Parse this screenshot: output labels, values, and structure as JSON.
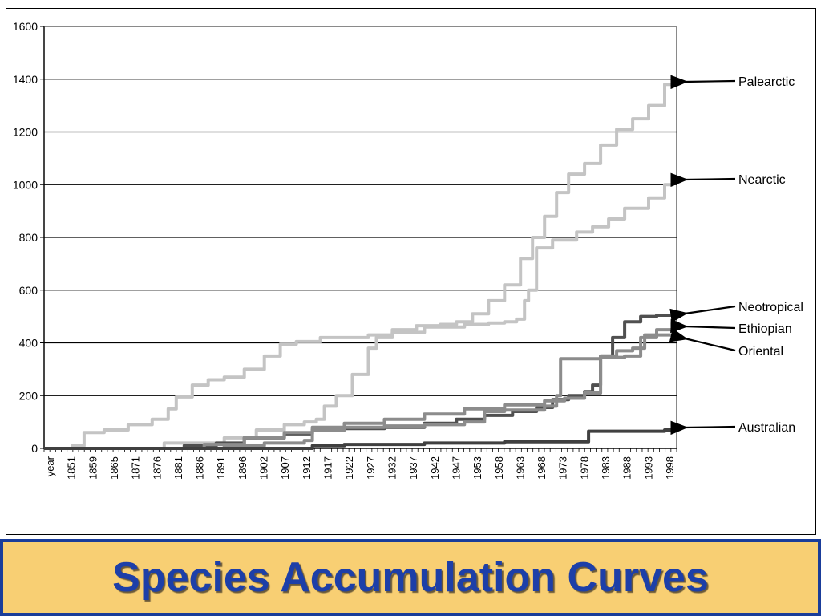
{
  "title": "Species Accumulation Curves",
  "colors": {
    "banner_border": "#1a3d9a",
    "banner_fill": "#f8cf73",
    "title_text": "#1d3fa8"
  },
  "chart_data": {
    "type": "line",
    "title": "",
    "xlabel": "",
    "ylabel": "",
    "ylim": [
      0,
      1600
    ],
    "xlim": [
      1845,
      2003
    ],
    "grid": true,
    "y_ticks": [
      0,
      200,
      400,
      600,
      800,
      1000,
      1200,
      1400,
      1600
    ],
    "x_tick_labels": [
      "year",
      "1851",
      "1859",
      "1865",
      "1871",
      "1876",
      "1881",
      "1886",
      "1891",
      "1896",
      "1902",
      "1907",
      "1912",
      "1917",
      "1922",
      "1927",
      "1932",
      "1937",
      "1942",
      "1947",
      "1953",
      "1958",
      "1963",
      "1968",
      "1973",
      "1978",
      "1983",
      "1988",
      "1993",
      "1998"
    ],
    "legend": "right-side arrow labels",
    "series": [
      {
        "name": "Palearctic",
        "color": "#c4c4c4",
        "x": [
          1845,
          1852,
          1855,
          1860,
          1866,
          1872,
          1876,
          1878,
          1882,
          1886,
          1890,
          1895,
          1900,
          1904,
          1908,
          1914,
          1920,
          1926,
          1932,
          1938,
          1944,
          1948,
          1952,
          1956,
          1960,
          1964,
          1967,
          1970,
          1973,
          1976,
          1980,
          1984,
          1988,
          1992,
          1996,
          2000,
          2002
        ],
        "values": [
          0,
          10,
          60,
          70,
          90,
          110,
          150,
          195,
          240,
          260,
          270,
          300,
          350,
          395,
          405,
          420,
          420,
          430,
          450,
          465,
          470,
          480,
          510,
          560,
          620,
          720,
          800,
          880,
          970,
          1040,
          1080,
          1150,
          1210,
          1250,
          1300,
          1380,
          1400
        ]
      },
      {
        "name": "Nearctic",
        "color": "#c4c4c4",
        "x": [
          1845,
          1875,
          1890,
          1898,
          1905,
          1910,
          1913,
          1915,
          1918,
          1922,
          1926,
          1928,
          1932,
          1940,
          1950,
          1956,
          1960,
          1963,
          1965,
          1966,
          1968,
          1972,
          1978,
          1982,
          1986,
          1990,
          1996,
          2000,
          2002
        ],
        "values": [
          0,
          20,
          40,
          70,
          90,
          100,
          110,
          160,
          200,
          280,
          380,
          420,
          440,
          460,
          470,
          475,
          480,
          490,
          560,
          600,
          760,
          790,
          820,
          840,
          870,
          910,
          950,
          1000,
          1030
        ]
      },
      {
        "name": "Neotropical",
        "color": "#505050",
        "x": [
          1845,
          1880,
          1888,
          1895,
          1905,
          1912,
          1920,
          1930,
          1940,
          1948,
          1955,
          1962,
          1968,
          1972,
          1976,
          1980,
          1982,
          1984,
          1987,
          1990,
          1994,
          1998,
          2002
        ],
        "values": [
          0,
          10,
          20,
          40,
          55,
          70,
          75,
          80,
          95,
          110,
          125,
          140,
          155,
          185,
          200,
          215,
          240,
          350,
          420,
          480,
          500,
          505,
          510
        ]
      },
      {
        "name": "Ethiopian",
        "color": "#8c8c8c",
        "x": [
          1845,
          1885,
          1895,
          1905,
          1912,
          1920,
          1930,
          1940,
          1950,
          1960,
          1970,
          1975,
          1980,
          1984,
          1988,
          1992,
          1995,
          1998,
          2002
        ],
        "values": [
          0,
          15,
          40,
          60,
          80,
          95,
          110,
          130,
          150,
          165,
          180,
          190,
          210,
          350,
          370,
          380,
          430,
          450,
          460
        ]
      },
      {
        "name": "Oriental",
        "color": "#8c8c8c",
        "x": [
          1845,
          1890,
          1900,
          1910,
          1912,
          1920,
          1930,
          1940,
          1950,
          1955,
          1960,
          1970,
          1973,
          1974,
          1980,
          1984,
          1990,
          1994,
          1998,
          2002
        ],
        "values": [
          0,
          10,
          20,
          30,
          70,
          80,
          85,
          90,
          100,
          140,
          145,
          160,
          200,
          340,
          340,
          345,
          350,
          420,
          430,
          430
        ]
      },
      {
        "name": "Australian",
        "color": "#404040",
        "x": [
          1845,
          1912,
          1920,
          1940,
          1960,
          1980,
          1981,
          1990,
          2000,
          2002
        ],
        "values": [
          0,
          10,
          15,
          20,
          25,
          25,
          65,
          65,
          70,
          85
        ]
      }
    ]
  }
}
